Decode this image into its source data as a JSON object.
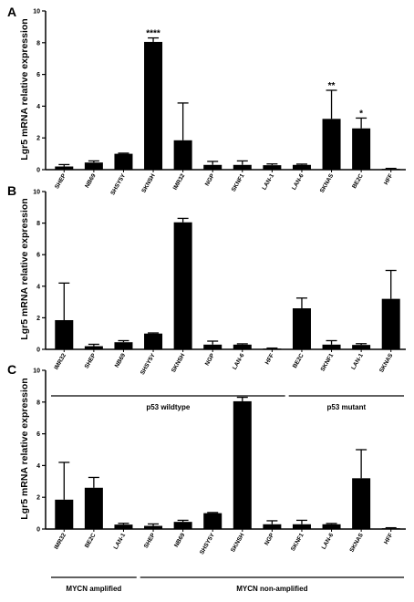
{
  "chart_data": [
    {
      "type": "bar",
      "panel": "A",
      "ylabel": "Lgr5 mRNA relative expression",
      "ylim": [
        0,
        10
      ],
      "yticks": [
        0,
        2,
        4,
        6,
        8,
        10
      ],
      "categories": [
        "SHEP",
        "NB69",
        "SHSY5Y",
        "SKNSH",
        "IMR32",
        "NGP",
        "SKNF1",
        "LAN-1",
        "LAN-6",
        "SKNAS",
        "BE2C",
        "HFF"
      ],
      "values": [
        0.2,
        0.45,
        1.0,
        8.05,
        1.85,
        0.3,
        0.3,
        0.28,
        0.3,
        3.2,
        2.6,
        0.05
      ],
      "errors": [
        0.12,
        0.1,
        0.04,
        0.25,
        2.35,
        0.22,
        0.25,
        0.08,
        0.05,
        1.8,
        0.65,
        0.03
      ],
      "annotations": [
        "",
        "",
        "",
        "****",
        "",
        "",
        "",
        "",
        "",
        "**",
        "*",
        ""
      ],
      "groups": []
    },
    {
      "type": "bar",
      "panel": "B",
      "ylabel": "Lgr5 mRNA relative expression",
      "ylim": [
        0,
        10
      ],
      "yticks": [
        0,
        2,
        4,
        6,
        8,
        10
      ],
      "categories": [
        "IMR32",
        "SHEP",
        "NB69",
        "SHSY5Y",
        "SKNSH",
        "NGP",
        "LAN-6",
        "HFF",
        "BE2C",
        "SKNF1",
        "LAN-1",
        "SKNAS"
      ],
      "values": [
        1.85,
        0.2,
        0.45,
        1.0,
        8.05,
        0.3,
        0.3,
        0.05,
        2.6,
        0.3,
        0.28,
        3.2
      ],
      "errors": [
        2.35,
        0.12,
        0.1,
        0.04,
        0.25,
        0.22,
        0.05,
        0.03,
        0.65,
        0.25,
        0.08,
        1.8
      ],
      "annotations": [
        "",
        "",
        "",
        "",
        "",
        "",
        "",
        "",
        "",
        "",
        "",
        ""
      ],
      "groups": [
        {
          "label": "p53 wildtype",
          "start": 0,
          "end": 7
        },
        {
          "label": "p53 mutant",
          "start": 8,
          "end": 11
        }
      ]
    },
    {
      "type": "bar",
      "panel": "C",
      "ylabel": "Lgr5 mRNA relative expression",
      "ylim": [
        0,
        10
      ],
      "yticks": [
        0,
        2,
        4,
        6,
        8,
        10
      ],
      "categories": [
        "IMR32",
        "BE2C",
        "LAN-1",
        "SHEP",
        "NB69",
        "SHSY5Y",
        "SKNSH",
        "NGP",
        "SKNF1",
        "LAN-6",
        "SKNAS",
        "HFF"
      ],
      "values": [
        1.85,
        2.6,
        0.28,
        0.2,
        0.45,
        1.0,
        8.05,
        0.3,
        0.3,
        0.3,
        3.2,
        0.05
      ],
      "errors": [
        2.35,
        0.65,
        0.08,
        0.12,
        0.1,
        0.04,
        0.25,
        0.22,
        0.25,
        0.05,
        1.8,
        0.03
      ],
      "annotations": [
        "",
        "",
        "",
        "",
        "",
        "",
        "",
        "",
        "",
        "",
        "",
        ""
      ],
      "groups": [
        {
          "label": "MYCN amplified",
          "start": 0,
          "end": 2
        },
        {
          "label": "MYCN non-amplified",
          "start": 3,
          "end": 11
        }
      ]
    }
  ]
}
